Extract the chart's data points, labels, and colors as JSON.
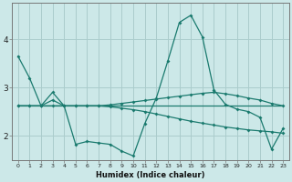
{
  "xlabel": "Humidex (Indice chaleur)",
  "background_color": "#cce8e8",
  "grid_color": "#aacccc",
  "line_color": "#1a7a6e",
  "xlim": [
    -0.5,
    23.5
  ],
  "ylim": [
    1.5,
    4.75
  ],
  "yticks": [
    2,
    3,
    4
  ],
  "xticks": [
    0,
    1,
    2,
    3,
    4,
    5,
    6,
    7,
    8,
    9,
    10,
    11,
    12,
    13,
    14,
    15,
    16,
    17,
    18,
    19,
    20,
    21,
    22,
    23
  ],
  "line1_x": [
    0,
    1,
    2,
    3,
    4,
    5,
    6,
    7,
    8,
    9,
    10,
    11,
    12,
    13,
    14,
    15,
    16,
    17,
    18,
    19,
    20,
    21,
    22,
    23
  ],
  "line1_y": [
    3.65,
    3.2,
    2.62,
    2.9,
    2.62,
    1.82,
    1.88,
    1.85,
    1.82,
    1.68,
    1.58,
    2.25,
    2.78,
    3.55,
    4.35,
    4.5,
    4.05,
    2.95,
    2.65,
    2.55,
    2.5,
    2.38,
    1.72,
    2.15
  ],
  "line2_x": [
    0,
    1,
    2,
    3,
    4,
    5,
    6,
    7,
    8,
    9,
    10,
    11,
    12,
    13,
    14,
    15,
    16,
    17,
    18,
    19,
    20,
    21,
    22,
    23
  ],
  "line2_y": [
    2.62,
    2.62,
    2.62,
    2.74,
    2.62,
    2.62,
    2.62,
    2.62,
    2.64,
    2.67,
    2.7,
    2.73,
    2.76,
    2.79,
    2.82,
    2.85,
    2.88,
    2.9,
    2.87,
    2.83,
    2.78,
    2.74,
    2.67,
    2.62
  ],
  "line3_x": [
    0,
    23
  ],
  "line3_y": [
    2.62,
    2.62
  ],
  "line4_x": [
    0,
    1,
    2,
    3,
    4,
    5,
    6,
    7,
    8,
    9,
    10,
    11,
    12,
    13,
    14,
    15,
    16,
    17,
    18,
    19,
    20,
    21,
    22,
    23
  ],
  "line4_y": [
    2.62,
    2.62,
    2.62,
    2.62,
    2.62,
    2.62,
    2.62,
    2.62,
    2.6,
    2.57,
    2.54,
    2.5,
    2.45,
    2.4,
    2.35,
    2.3,
    2.26,
    2.22,
    2.18,
    2.15,
    2.12,
    2.1,
    2.08,
    2.05
  ]
}
